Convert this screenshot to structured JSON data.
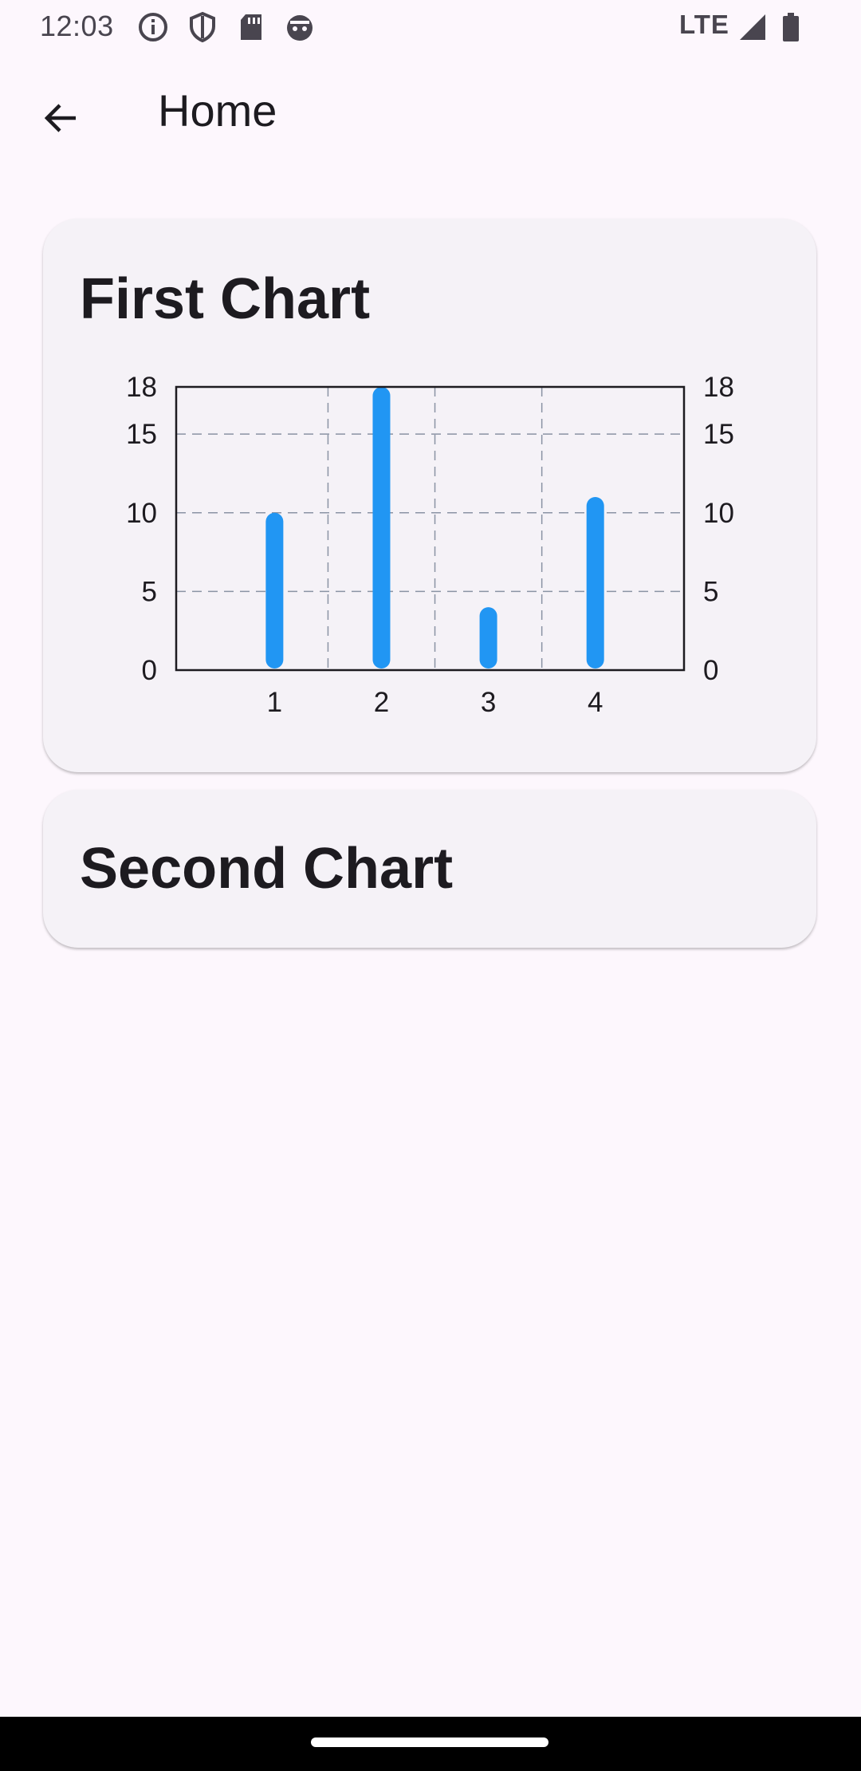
{
  "status_bar": {
    "time": "12:03",
    "network": "LTE",
    "icons": [
      "info-icon",
      "shield-icon",
      "sd-card-icon",
      "android-face-icon",
      "signal-icon",
      "battery-icon"
    ]
  },
  "app_bar": {
    "title": "Home",
    "back_icon": "arrow-back-icon"
  },
  "cards": [
    {
      "title": "First Chart"
    },
    {
      "title": "Second Chart"
    }
  ],
  "chart_data": {
    "type": "bar",
    "categories": [
      "1",
      "2",
      "3",
      "4"
    ],
    "values": [
      10,
      18,
      4,
      11
    ],
    "ylim": [
      0,
      18
    ],
    "y_ticks": [
      "0",
      "5",
      "10",
      "15",
      "18"
    ],
    "y_tick_values": [
      0,
      5,
      10,
      15,
      18
    ],
    "right_axis_ticks": true,
    "grid": true,
    "bar_color": "#2196f3",
    "title": "First Chart"
  },
  "colors": {
    "background": "#fdf7fd",
    "card": "#f5f2f7",
    "bar": "#2196f3",
    "grid": "#8a93a4"
  }
}
